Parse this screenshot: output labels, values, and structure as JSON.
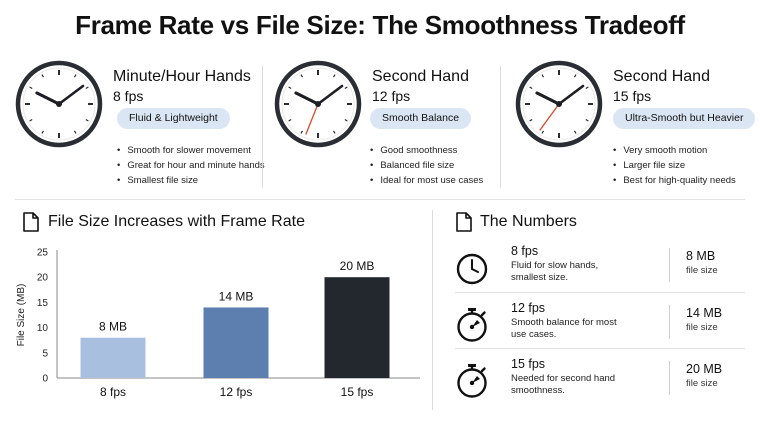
{
  "title": "Frame Rate vs File Size: The Smoothness Tradeoff",
  "cards": [
    {
      "name": "Minute/Hour Hands",
      "fps": "8 fps",
      "badge": "Fluid & Lightweight",
      "bullets": [
        "Smooth for slower movement",
        "Great for hour and minute hands",
        "Smallest file size"
      ]
    },
    {
      "name": "Second Hand",
      "fps": "12 fps",
      "badge": "Smooth Balance",
      "bullets": [
        "Good smoothness",
        "Balanced file size",
        "Ideal for most use cases"
      ]
    },
    {
      "name": "Second Hand",
      "fps": "15 fps",
      "badge": "Ultra-Smooth but Heavier",
      "bullets": [
        "Very smooth motion",
        "Larger file size",
        "Best for high-quality needs"
      ]
    }
  ],
  "chart_section_title": "File Size Increases with Frame Rate",
  "numbers_section_title": "The Numbers",
  "chart_data": {
    "type": "bar",
    "title": "File Size Increases with Frame Rate",
    "categories": [
      "8 fps",
      "12 fps",
      "15 fps"
    ],
    "values": [
      8,
      14,
      20
    ],
    "data_labels": [
      "8 MB",
      "14 MB",
      "20 MB"
    ],
    "bar_colors": [
      "#a9bfdf",
      "#5d7fb0",
      "#23272e"
    ],
    "xlabel": "",
    "ylabel": "File Size (MB)",
    "ylim": [
      0,
      25
    ],
    "yticks": [
      "0",
      "5",
      "10",
      "15",
      "20",
      "25"
    ],
    "grid": false
  },
  "numbers": [
    {
      "fps": "8 fps",
      "desc": "Fluid for slow hands, smallest size.",
      "size": "8 MB",
      "size_label": "file size",
      "icon": "clock-icon"
    },
    {
      "fps": "12 fps",
      "desc": "Smooth balance for most use cases.",
      "size": "14 MB",
      "size_label": "file size",
      "icon": "stopwatch-icon"
    },
    {
      "fps": "15 fps",
      "desc": "Needed for second hand smoothness.",
      "size": "20 MB",
      "size_label": "file size",
      "icon": "stopwatch-icon"
    }
  ],
  "colors": {
    "badge_bg": "#dbe6f5",
    "second_hand": "#d9482b",
    "clock_face": "#2a2d33"
  }
}
